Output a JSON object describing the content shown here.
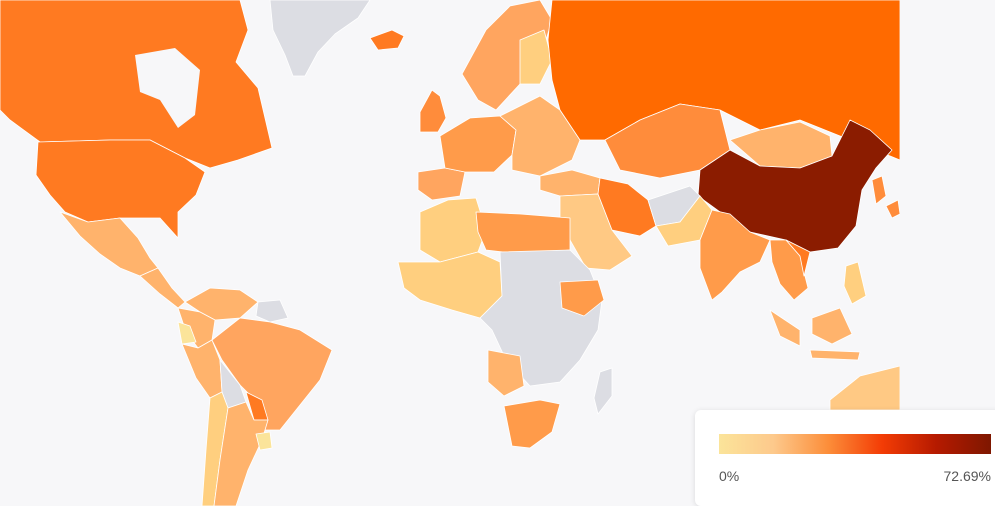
{
  "legend": {
    "min_label": "0%",
    "max_label": "72.69%",
    "min_value": 0,
    "max_value": 72.69,
    "gradient_colors": [
      "#fbe49a",
      "#fdc98c",
      "#fc8e3a",
      "#f33c05",
      "#b51a00",
      "#7e1700"
    ]
  },
  "colors": {
    "ocean": "#f7f7f9",
    "no_data": "#dcdde3",
    "border": "#ffffff"
  },
  "regions": [
    {
      "id": "canada",
      "color": "#ff7a21"
    },
    {
      "id": "usa",
      "color": "#ff7a21"
    },
    {
      "id": "alaska",
      "color": "#ff7a21"
    },
    {
      "id": "mexico",
      "color": "#ffb36c"
    },
    {
      "id": "central-america",
      "color": "#ffb36c"
    },
    {
      "id": "greenland",
      "color": "#dcdde3"
    },
    {
      "id": "iceland",
      "color": "#ff7a21"
    },
    {
      "id": "venezuela",
      "color": "#ffb36c"
    },
    {
      "id": "colombia",
      "color": "#ffb36c"
    },
    {
      "id": "ecuador",
      "color": "#fbe49a"
    },
    {
      "id": "peru",
      "color": "#ffb36c"
    },
    {
      "id": "brazil",
      "color": "#ffa55f"
    },
    {
      "id": "bolivia",
      "color": "#dcdde3"
    },
    {
      "id": "paraguay",
      "color": "#ff7a21"
    },
    {
      "id": "chile",
      "color": "#ffcf7f"
    },
    {
      "id": "argentina",
      "color": "#ffb36c"
    },
    {
      "id": "uruguay",
      "color": "#fbe49a"
    },
    {
      "id": "guianas",
      "color": "#dcdde3"
    },
    {
      "id": "uk-ireland",
      "color": "#ff8c3b"
    },
    {
      "id": "scandinavia",
      "color": "#ffa55f"
    },
    {
      "id": "finland",
      "color": "#ffcf7f"
    },
    {
      "id": "western-europe",
      "color": "#ff9b4a"
    },
    {
      "id": "iberia",
      "color": "#ffa55f"
    },
    {
      "id": "eastern-europe",
      "color": "#ffb36c"
    },
    {
      "id": "turkey",
      "color": "#ffb36c"
    },
    {
      "id": "russia",
      "color": "#ff6a00"
    },
    {
      "id": "kazakhstan",
      "color": "#ff8c3b"
    },
    {
      "id": "mongolia",
      "color": "#ffb36c"
    },
    {
      "id": "china",
      "color": "#8b1c00"
    },
    {
      "id": "korea-japan",
      "color": "#ff8c3b"
    },
    {
      "id": "iran",
      "color": "#ff7a21"
    },
    {
      "id": "middle-east",
      "color": "#ffc984"
    },
    {
      "id": "afghanistan",
      "color": "#dcdde3"
    },
    {
      "id": "pakistan",
      "color": "#ffcf7f"
    },
    {
      "id": "india",
      "color": "#ff9b4a"
    },
    {
      "id": "southeast-asia",
      "color": "#ff9b4a"
    },
    {
      "id": "vietnam",
      "color": "#ff7a21"
    },
    {
      "id": "malaysia-indonesia",
      "color": "#ffb36c"
    },
    {
      "id": "philippines",
      "color": "#ffcf7f"
    },
    {
      "id": "australia",
      "color": "#ffc984"
    },
    {
      "id": "north-africa-west",
      "color": "#ffcf7f"
    },
    {
      "id": "libya-egypt",
      "color": "#ff9b4a"
    },
    {
      "id": "west-africa",
      "color": "#ffcf7f"
    },
    {
      "id": "central-africa",
      "color": "#dcdde3"
    },
    {
      "id": "ethiopia",
      "color": "#ff9b4a"
    },
    {
      "id": "angola-namibia",
      "color": "#ffb36c"
    },
    {
      "id": "south-africa",
      "color": "#ff9b4a"
    },
    {
      "id": "madagascar",
      "color": "#dcdde3"
    }
  ]
}
